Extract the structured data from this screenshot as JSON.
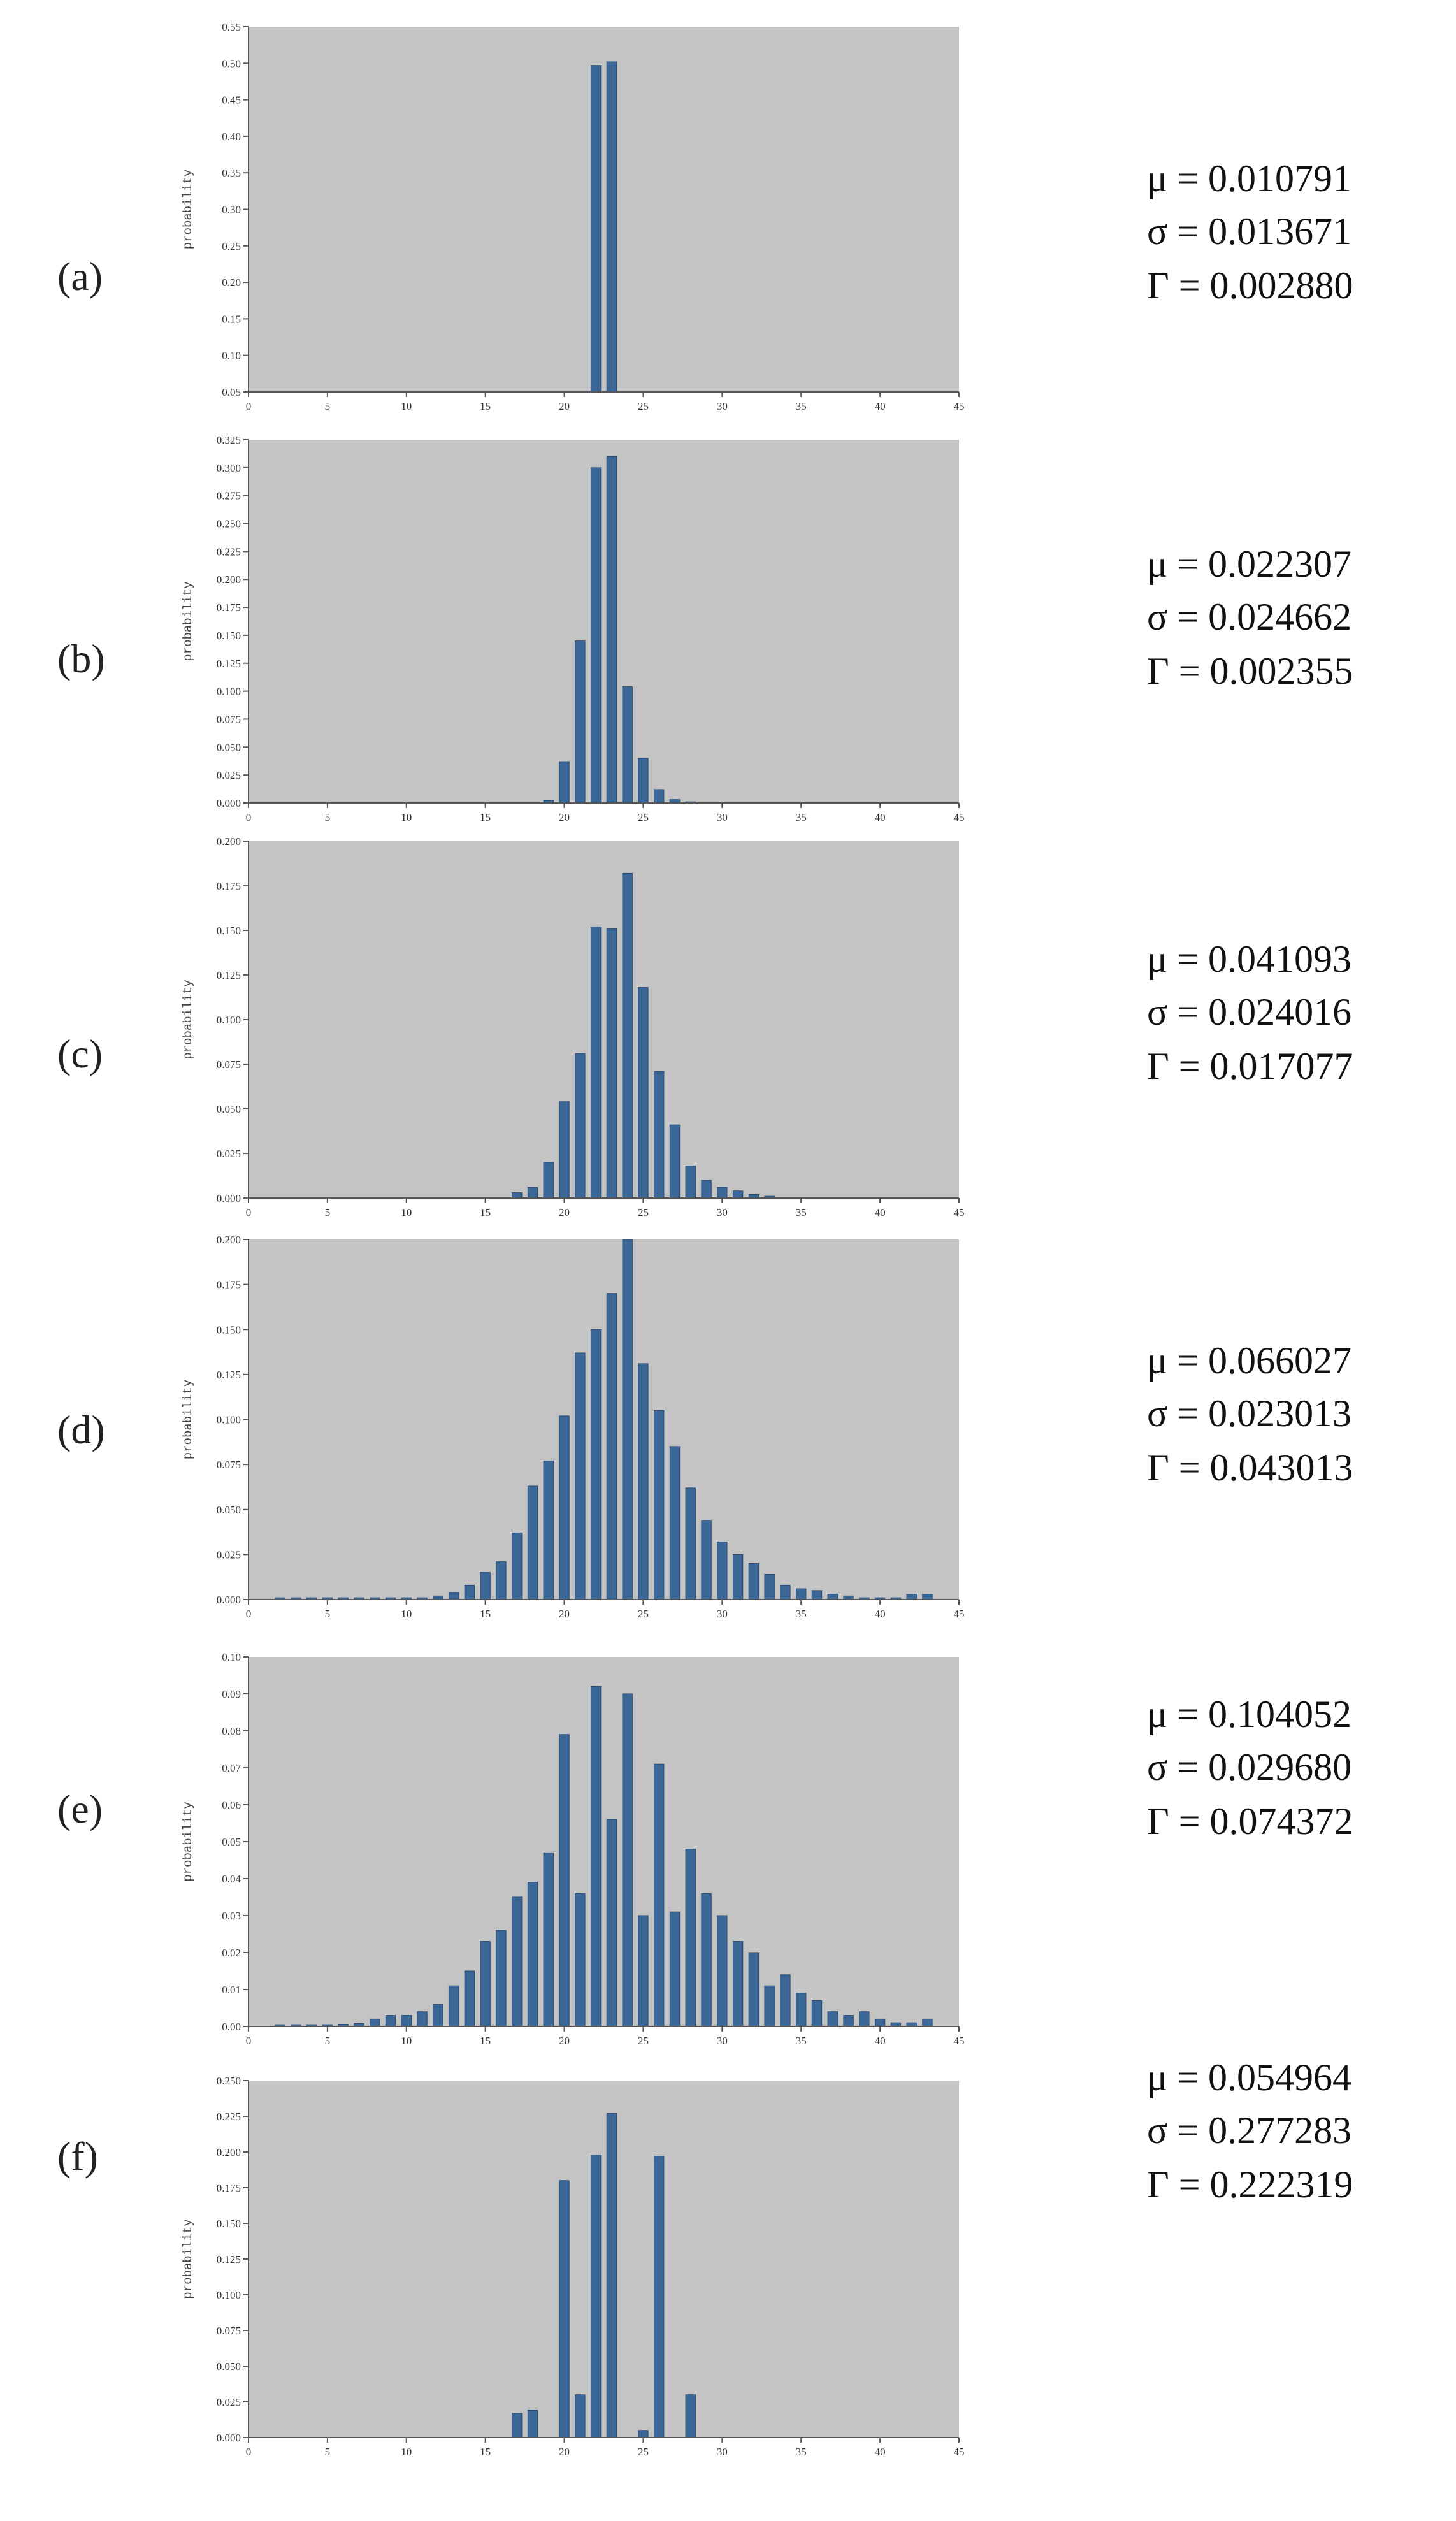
{
  "x_ticks": [
    "0",
    "5",
    "10",
    "15",
    "20",
    "25",
    "30",
    "35",
    "40",
    "45"
  ],
  "panels": [
    {
      "label": "(a)",
      "stats": {
        "mu": "μ = 0.010791",
        "sigma": "σ = 0.013671",
        "gamma": "Γ = 0.002880"
      },
      "chart_data": {
        "type": "bar",
        "xlabel": "",
        "ylabel": "probability",
        "xlim": [
          0,
          45
        ],
        "ylim": [
          0.05,
          0.55
        ],
        "y_ticks": [
          "0.55",
          "0.50",
          "0.45",
          "0.40",
          "0.35",
          "0.30",
          "0.25",
          "0.20",
          "0.15",
          "0.10",
          "0.05"
        ],
        "x": [
          22,
          23
        ],
        "values": [
          0.497,
          0.502
        ]
      }
    },
    {
      "label": "(b)",
      "stats": {
        "mu": "μ = 0.022307",
        "sigma": "σ = 0.024662",
        "gamma": "Γ = 0.002355"
      },
      "chart_data": {
        "type": "bar",
        "xlabel": "",
        "ylabel": "probability",
        "xlim": [
          0,
          45
        ],
        "ylim": [
          0,
          0.325
        ],
        "y_ticks": [
          "0.325",
          "0.300",
          "0.275",
          "0.250",
          "0.225",
          "0.200",
          "0.175",
          "0.150",
          "0.125",
          "0.100",
          "0.075",
          "0.050",
          "0.025",
          "0.000"
        ],
        "x": [
          19,
          20,
          21,
          22,
          23,
          24,
          25,
          26,
          27,
          28
        ],
        "values": [
          0.002,
          0.037,
          0.145,
          0.3,
          0.31,
          0.104,
          0.04,
          0.012,
          0.003,
          0.001
        ]
      }
    },
    {
      "label": "(c)",
      "stats": {
        "mu": "μ = 0.041093",
        "sigma": "σ = 0.024016",
        "gamma": "Γ = 0.017077"
      },
      "chart_data": {
        "type": "bar",
        "xlabel": "",
        "ylabel": "probability",
        "xlim": [
          0,
          45
        ],
        "ylim": [
          0,
          0.2
        ],
        "y_ticks": [
          "0.200",
          "0.175",
          "0.150",
          "0.125",
          "0.100",
          "0.075",
          "0.050",
          "0.025",
          "0.000"
        ],
        "x": [
          17,
          18,
          19,
          20,
          21,
          22,
          23,
          24,
          25,
          26,
          27,
          28,
          29,
          30,
          31,
          32,
          33
        ],
        "values": [
          0.003,
          0.006,
          0.02,
          0.054,
          0.081,
          0.152,
          0.151,
          0.182,
          0.118,
          0.071,
          0.041,
          0.018,
          0.01,
          0.006,
          0.004,
          0.002,
          0.001
        ]
      }
    },
    {
      "label": "(d)",
      "stats": {
        "mu": "μ = 0.066027",
        "sigma": "σ = 0.023013",
        "gamma": "Γ = 0.043013"
      },
      "chart_data": {
        "type": "bar",
        "xlabel": "",
        "ylabel": "probability",
        "xlim": [
          0,
          45
        ],
        "ylim": [
          0,
          0.2
        ],
        "y_ticks": [
          "0.200",
          "0.175",
          "0.150",
          "0.125",
          "0.100",
          "0.075",
          "0.050",
          "0.025",
          "0.000"
        ],
        "x": [
          2,
          3,
          4,
          5,
          6,
          7,
          8,
          9,
          10,
          11,
          12,
          13,
          14,
          15,
          16,
          17,
          18,
          19,
          20,
          21,
          22,
          23,
          24,
          25,
          26,
          27,
          28,
          29,
          30,
          31,
          32,
          33,
          34,
          35,
          36,
          37,
          38,
          39,
          40,
          41,
          42,
          43
        ],
        "values": [
          0.001,
          0.001,
          0.001,
          0.001,
          0.001,
          0.001,
          0.001,
          0.001,
          0.001,
          0.001,
          0.002,
          0.004,
          0.008,
          0.015,
          0.021,
          0.037,
          0.063,
          0.077,
          0.102,
          0.137,
          0.15,
          0.17,
          0.2,
          0.131,
          0.105,
          0.085,
          0.062,
          0.044,
          0.032,
          0.025,
          0.02,
          0.014,
          0.008,
          0.006,
          0.005,
          0.003,
          0.002,
          0.001,
          0.001,
          0.001,
          0.003,
          0.003
        ]
      }
    },
    {
      "label": "(e)",
      "stats": {
        "mu": "μ = 0.104052",
        "sigma": "σ = 0.029680",
        "gamma": "Γ = 0.074372"
      },
      "chart_data": {
        "type": "bar",
        "xlabel": "",
        "ylabel": "probability",
        "xlim": [
          0,
          45
        ],
        "ylim": [
          0,
          0.1
        ],
        "y_ticks": [
          "0.10",
          "0.09",
          "0.08",
          "0.07",
          "0.06",
          "0.05",
          "0.04",
          "0.03",
          "0.02",
          "0.01",
          "0.00"
        ],
        "x": [
          2,
          3,
          4,
          5,
          6,
          7,
          8,
          9,
          10,
          11,
          12,
          13,
          14,
          15,
          16,
          17,
          18,
          19,
          20,
          21,
          22,
          23,
          24,
          25,
          26,
          27,
          28,
          29,
          30,
          31,
          32,
          33,
          34,
          35,
          36,
          37,
          38,
          39,
          40,
          41,
          42,
          43
        ],
        "values": [
          0.0005,
          0.0005,
          0.0005,
          0.0005,
          0.0006,
          0.0008,
          0.002,
          0.003,
          0.003,
          0.004,
          0.006,
          0.011,
          0.015,
          0.023,
          0.026,
          0.035,
          0.039,
          0.047,
          0.079,
          0.036,
          0.092,
          0.056,
          0.09,
          0.03,
          0.071,
          0.031,
          0.048,
          0.036,
          0.03,
          0.023,
          0.02,
          0.011,
          0.014,
          0.009,
          0.007,
          0.004,
          0.003,
          0.004,
          0.002,
          0.001,
          0.001,
          0.002
        ]
      }
    },
    {
      "label": "(f)",
      "stats": {
        "mu": "μ = 0.054964",
        "sigma": "σ = 0.277283",
        "gamma": "Γ = 0.222319"
      },
      "chart_data": {
        "type": "bar",
        "xlabel": "",
        "ylabel": "probability",
        "xlim": [
          0,
          45
        ],
        "ylim": [
          0,
          0.25
        ],
        "y_ticks": [
          "0.250",
          "0.225",
          "0.200",
          "0.175",
          "0.150",
          "0.125",
          "0.100",
          "0.075",
          "0.050",
          "0.025",
          "0.000"
        ],
        "x": [
          17,
          18,
          20,
          21,
          22,
          23,
          25,
          26,
          28
        ],
        "values": [
          0.017,
          0.019,
          0.18,
          0.03,
          0.198,
          0.227,
          0.005,
          0.197,
          0.03
        ]
      }
    }
  ]
}
